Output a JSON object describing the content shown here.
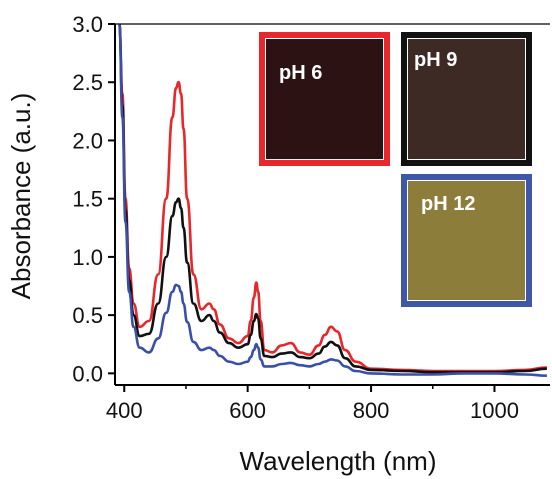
{
  "chart_data": {
    "type": "line",
    "xlabel": "Wavelength (nm)",
    "ylabel": "Absorbance (a.u.)",
    "xlim": [
      385,
      1090
    ],
    "ylim": [
      -0.1,
      3.0
    ],
    "x_ticks": [
      400,
      600,
      800,
      1000
    ],
    "y_ticks": [
      0.0,
      0.5,
      1.0,
      1.5,
      2.0,
      2.5,
      3.0
    ],
    "x_tick_labels": [
      "400",
      "600",
      "800",
      "1000"
    ],
    "y_tick_labels": [
      "0.0",
      "0.5",
      "1.0",
      "1.5",
      "2.0",
      "2.5",
      "3.0"
    ],
    "grid": false,
    "series": [
      {
        "color": "#e8262b",
        "x": [
          392,
          397,
          402,
          408,
          415,
          425,
          440,
          455,
          468,
          478,
          484,
          488,
          492,
          496,
          502,
          512,
          525,
          538,
          545,
          555,
          570,
          585,
          600,
          605,
          610,
          614,
          617,
          621,
          627,
          640,
          655,
          670,
          685,
          700,
          715,
          725,
          735,
          745,
          758,
          775,
          800,
          850,
          900,
          950,
          1000,
          1050,
          1085
        ],
        "y": [
          3.0,
          2.4,
          1.5,
          0.9,
          0.6,
          0.4,
          0.45,
          0.85,
          1.5,
          2.2,
          2.45,
          2.5,
          2.4,
          2.1,
          1.5,
          0.85,
          0.55,
          0.6,
          0.55,
          0.42,
          0.3,
          0.26,
          0.32,
          0.45,
          0.65,
          0.78,
          0.7,
          0.45,
          0.2,
          0.18,
          0.24,
          0.26,
          0.18,
          0.16,
          0.24,
          0.33,
          0.4,
          0.36,
          0.2,
          0.1,
          0.04,
          0.03,
          0.02,
          0.02,
          0.02,
          0.03,
          0.05
        ]
      },
      {
        "color": "#111111",
        "x": [
          392,
          397,
          402,
          408,
          415,
          425,
          440,
          455,
          468,
          478,
          484,
          488,
          492,
          496,
          502,
          512,
          525,
          538,
          545,
          555,
          570,
          585,
          600,
          605,
          610,
          614,
          617,
          621,
          627,
          640,
          655,
          670,
          685,
          700,
          715,
          725,
          735,
          745,
          758,
          775,
          800,
          850,
          900,
          950,
          1000,
          1050,
          1085
        ],
        "y": [
          3.0,
          2.3,
          1.4,
          0.8,
          0.5,
          0.32,
          0.34,
          0.6,
          1.0,
          1.35,
          1.47,
          1.5,
          1.42,
          1.25,
          0.95,
          0.6,
          0.45,
          0.5,
          0.45,
          0.35,
          0.26,
          0.22,
          0.25,
          0.33,
          0.45,
          0.51,
          0.47,
          0.3,
          0.15,
          0.14,
          0.17,
          0.18,
          0.14,
          0.13,
          0.17,
          0.23,
          0.27,
          0.24,
          0.13,
          0.06,
          0.03,
          0.02,
          0.01,
          0.01,
          0.01,
          0.02,
          0.04
        ]
      },
      {
        "color": "#3a4fa8",
        "x": [
          392,
          397,
          402,
          408,
          415,
          425,
          440,
          455,
          468,
          478,
          484,
          488,
          492,
          496,
          502,
          512,
          525,
          538,
          545,
          555,
          570,
          585,
          600,
          605,
          610,
          614,
          617,
          621,
          627,
          640,
          655,
          670,
          685,
          700,
          715,
          725,
          735,
          745,
          758,
          775,
          800,
          850,
          900,
          950,
          1000,
          1050,
          1085
        ],
        "y": [
          3.0,
          2.2,
          1.3,
          0.7,
          0.4,
          0.22,
          0.18,
          0.3,
          0.52,
          0.7,
          0.76,
          0.75,
          0.7,
          0.6,
          0.44,
          0.27,
          0.2,
          0.22,
          0.2,
          0.15,
          0.1,
          0.08,
          0.1,
          0.14,
          0.2,
          0.25,
          0.22,
          0.12,
          0.06,
          0.06,
          0.08,
          0.09,
          0.07,
          0.06,
          0.08,
          0.1,
          0.12,
          0.11,
          0.06,
          0.02,
          0.0,
          -0.01,
          -0.01,
          0.0,
          0.0,
          -0.01,
          -0.02
        ]
      }
    ]
  },
  "insets": [
    {
      "label": "pH 6",
      "border_color": "#e8262b",
      "fill_color": "#2c1212"
    },
    {
      "label": "pH 9",
      "border_color": "#111111",
      "fill_color": "#3d2a24"
    },
    {
      "label": "pH 12",
      "border_color": "#3f57a7",
      "fill_color": "#8c7d3b"
    }
  ]
}
